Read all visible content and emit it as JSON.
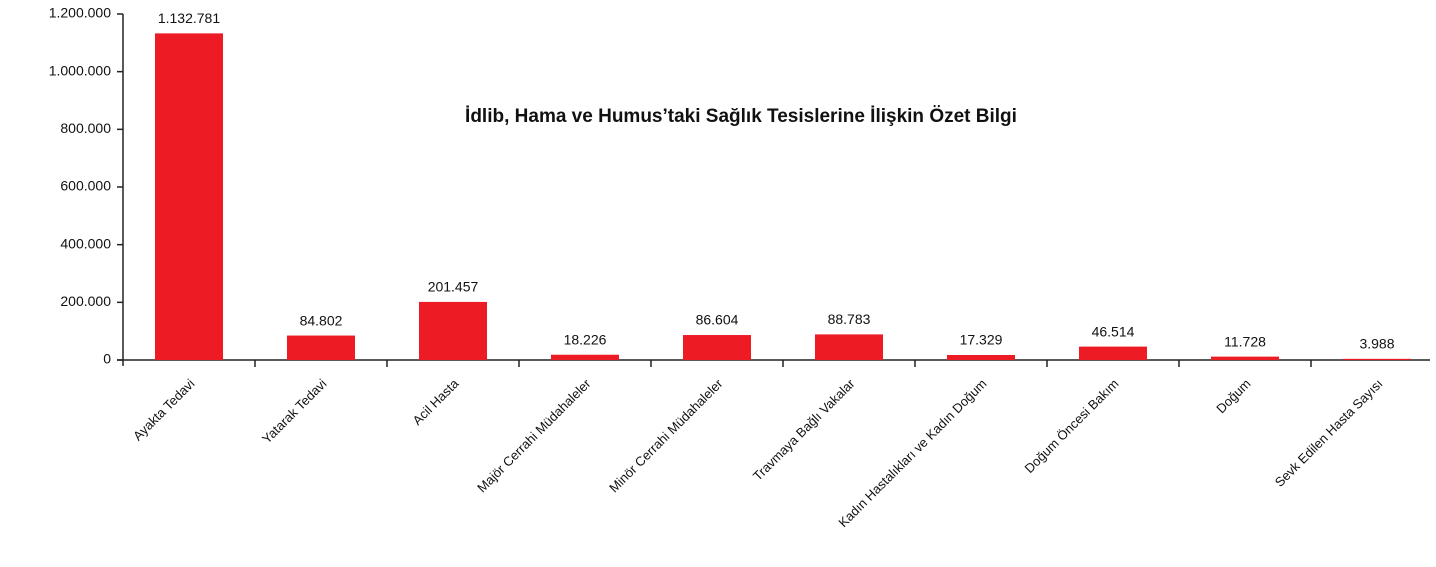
{
  "chart_data": {
    "type": "bar",
    "title": "İdlib, Hama ve Humus’taki Sağlık Tesislerine İlişkin Özet Bilgi",
    "categories": [
      "Ayakta Tedavi",
      "Yatarak Tedavi",
      "Acil Hasta",
      "Majör Cerrahi Müdahaleler",
      "Minör Cerrahi Müdahaleler",
      "Travmaya Bağlı Vakalar",
      "Kadın Hastalıkları ve Kadın Doğum",
      "Doğum Öncesi Bakım",
      "Doğum",
      "Sevk Edilen Hasta Sayısı"
    ],
    "values": [
      1132781,
      84802,
      201457,
      18226,
      86604,
      88783,
      17329,
      46514,
      11728,
      3988
    ],
    "value_labels": [
      "1.132.781",
      "84.802",
      "201.457",
      "18.226",
      "86.604",
      "88.783",
      "17.329",
      "46.514",
      "11.728",
      "3.988"
    ],
    "color": "#ed1c24",
    "ylim": [
      0,
      1200000
    ],
    "yticks": [
      0,
      {
        "value": 200000,
        "label": "200.000"
      },
      {
        "value": 400000,
        "label": "400.000"
      },
      {
        "value": 600000,
        "label": "600.000"
      },
      {
        "value": 800000,
        "label": "800.000"
      },
      {
        "value": 1000000,
        "label": "1.000.000"
      },
      {
        "value": 1200000,
        "label": "1.200.000"
      }
    ],
    "grid": false
  }
}
